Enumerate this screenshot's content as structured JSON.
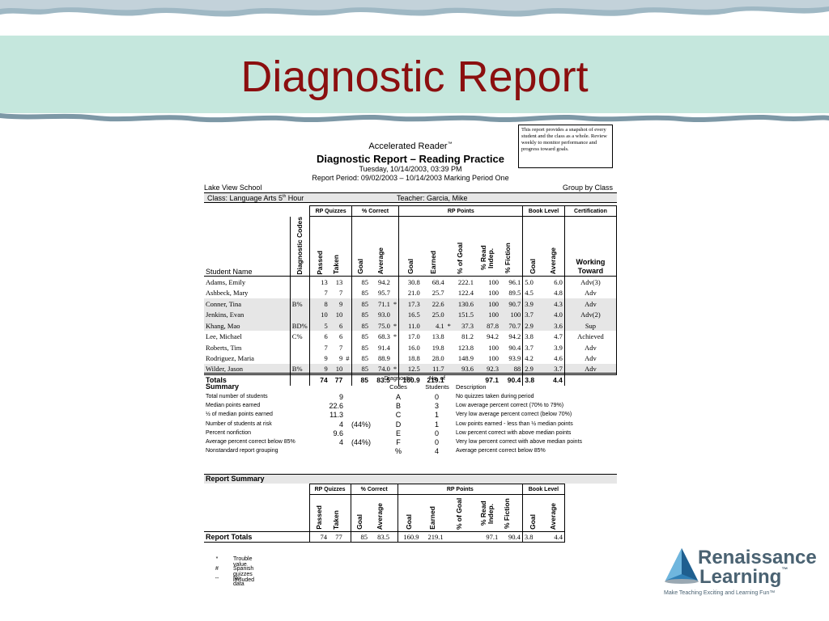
{
  "slide": {
    "title": "Diagnostic Report"
  },
  "note": "This report provides a snapshot of every student and the class as a whole.  Review weekly to monitor performance and progress toward goals.",
  "report": {
    "app": "Accelerated Reader",
    "tm": "™",
    "name": "Diagnostic Report – Reading Practice",
    "date": "Tuesday, 10/14/2003, 03:39 PM",
    "period": "Report Period: 09/02/2003 – 10/14/2003 Marking Period One",
    "school": "Lake View School",
    "group_by": "Group by Class",
    "class_label": "Class: Language Arts 5",
    "class_sup": "th",
    "class_suffix": " Hour",
    "teacher": "Teacher: Garcia, Mike"
  },
  "columns": {
    "groups": [
      "RP Quizzes",
      "% Correct",
      "RP Points",
      "Book Level",
      "Certification"
    ],
    "student_name": "Student Name",
    "diag": "Diagnostic Codes",
    "passed": "Passed",
    "taken": "Taken",
    "goal": "Goal",
    "average": "Average",
    "rp_goal": "Goal",
    "earned": "Earned",
    "pct_goal": "% of Goal",
    "read_indep": "% Read Indep.",
    "fiction": "% Fiction",
    "bl_goal": "Goal",
    "bl_avg": "Average",
    "working": "Working",
    "toward": "Toward"
  },
  "students": [
    {
      "name": "Adams, Emily",
      "diag": "",
      "passed": "13",
      "taken": "13",
      "flag": "",
      "goal": "85",
      "avg": "94.2",
      "tr": "",
      "rp_goal": "30.8",
      "earned": "68.4",
      "tr2": "",
      "pct_goal": "222.1",
      "read": "100",
      "fic": "96.1",
      "bl_goal": "5.0",
      "bl_avg": "6.0",
      "cert": "Adv(3)",
      "shade": false
    },
    {
      "name": "Ashbeck, Mary",
      "diag": "",
      "passed": "7",
      "taken": "7",
      "flag": "",
      "goal": "85",
      "avg": "95.7",
      "tr": "",
      "rp_goal": "21.0",
      "earned": "25.7",
      "tr2": "",
      "pct_goal": "122.4",
      "read": "100",
      "fic": "89.5",
      "bl_goal": "4.5",
      "bl_avg": "4.8",
      "cert": "Adv",
      "shade": false
    },
    {
      "name": "Conner, Tina",
      "diag": "B%",
      "passed": "8",
      "taken": "9",
      "flag": "",
      "goal": "85",
      "avg": "71.1",
      "tr": "*",
      "rp_goal": "17.3",
      "earned": "22.6",
      "tr2": "",
      "pct_goal": "130.6",
      "read": "100",
      "fic": "90.7",
      "bl_goal": "3.9",
      "bl_avg": "4.3",
      "cert": "Adv",
      "shade": true
    },
    {
      "name": "Jenkins, Evan",
      "diag": "",
      "passed": "10",
      "taken": "10",
      "flag": "",
      "goal": "85",
      "avg": "93.0",
      "tr": "",
      "rp_goal": "16.5",
      "earned": "25.0",
      "tr2": "",
      "pct_goal": "151.5",
      "read": "100",
      "fic": "100",
      "bl_goal": "3.7",
      "bl_avg": "4.0",
      "cert": "Adv(2)",
      "shade": true
    },
    {
      "name": "Khang, Mao",
      "diag": "BD%",
      "passed": "5",
      "taken": "6",
      "flag": "",
      "goal": "85",
      "avg": "75.0",
      "tr": "*",
      "rp_goal": "11.0",
      "earned": "4.1",
      "tr2": "*",
      "pct_goal": "37.3",
      "read": "87.8",
      "fic": "70.7",
      "bl_goal": "2.9",
      "bl_avg": "3.6",
      "cert": "Sup",
      "shade": true
    },
    {
      "name": "Lee, Michael",
      "diag": "C%",
      "passed": "6",
      "taken": "6",
      "flag": "",
      "goal": "85",
      "avg": "68.3",
      "tr": "*",
      "rp_goal": "17.0",
      "earned": "13.8",
      "tr2": "",
      "pct_goal": "81.2",
      "read": "94.2",
      "fic": "94.2",
      "bl_goal": "3.8",
      "bl_avg": "4.7",
      "cert": "Achieved",
      "shade": false
    },
    {
      "name": "Roberts, Tim",
      "diag": "",
      "passed": "7",
      "taken": "7",
      "flag": "",
      "goal": "85",
      "avg": "91.4",
      "tr": "",
      "rp_goal": "16.0",
      "earned": "19.8",
      "tr2": "",
      "pct_goal": "123.8",
      "read": "100",
      "fic": "90.4",
      "bl_goal": "3.7",
      "bl_avg": "3.9",
      "cert": "Adv",
      "shade": false
    },
    {
      "name": "Rodriguez, Maria",
      "diag": "",
      "passed": "9",
      "taken": "9",
      "flag": "#",
      "goal": "85",
      "avg": "88.9",
      "tr": "",
      "rp_goal": "18.8",
      "earned": "28.0",
      "tr2": "",
      "pct_goal": "148.9",
      "read": "100",
      "fic": "93.9",
      "bl_goal": "4.2",
      "bl_avg": "4.6",
      "cert": "Adv",
      "shade": false
    },
    {
      "name": "Wilder, Jason",
      "diag": "B%",
      "passed": "9",
      "taken": "10",
      "flag": "",
      "goal": "85",
      "avg": "74.0",
      "tr": "*",
      "rp_goal": "12.5",
      "earned": "11.7",
      "tr2": "",
      "pct_goal": "93.6",
      "read": "92.3",
      "fic": "88",
      "bl_goal": "2.9",
      "bl_avg": "3.7",
      "cert": "Adv",
      "shade": true
    }
  ],
  "totals": {
    "label": "Totals",
    "passed": "74",
    "taken": "77",
    "goal": "85",
    "avg": "83.5",
    "rp_goal": "160.9",
    "earned": "219.1",
    "read": "97.1",
    "fic": "90.4",
    "bl_goal": "3.8",
    "bl_avg": "4.4"
  },
  "summary": {
    "title": "Summary",
    "codes_h1": "Diagnostic",
    "codes_h2": "Codes",
    "students_h1": "No. of",
    "students_h2": "Students",
    "desc_h": "Description",
    "left": [
      {
        "label": "Total number of students",
        "v1": "9",
        "v2": ""
      },
      {
        "label": "Median points earned",
        "v1": "22.6",
        "v2": ""
      },
      {
        "label": "½ of median points earned",
        "v1": "11.3",
        "v2": ""
      },
      {
        "label": "Number of students at risk",
        "v1": "4",
        "v2": "(44%)"
      },
      {
        "label": "Percent nonfiction",
        "v1": "9.6",
        "v2": ""
      },
      {
        "label": "Average percent correct below 85%",
        "v1": "4",
        "v2": "(44%)"
      },
      {
        "label": "Nonstandard report grouping",
        "v1": "",
        "v2": ""
      }
    ],
    "codes": [
      {
        "code": "A",
        "n": "0",
        "desc": "No quizzes taken during period"
      },
      {
        "code": "B",
        "n": "3",
        "desc": "Low average percent correct (70% to 79%)"
      },
      {
        "code": "C",
        "n": "1",
        "desc": "Very low average percent correct (below 70%)"
      },
      {
        "code": "D",
        "n": "1",
        "desc": "Low points earned - less than ½ median points"
      },
      {
        "code": "E",
        "n": "0",
        "desc": "Low percent correct with above median points"
      },
      {
        "code": "F",
        "n": "0",
        "desc": "Very low percent correct with above median points"
      },
      {
        "code": "%",
        "n": "4",
        "desc": "Average percent correct below 85%"
      }
    ]
  },
  "report_summary": {
    "title": "Report Summary",
    "row_label": "Report Totals",
    "passed": "74",
    "taken": "77",
    "goal": "85",
    "avg": "83.5",
    "rp_goal": "160.9",
    "earned": "219.1",
    "read": "97.1",
    "fic": "90.4",
    "bl_goal": "3.8",
    "bl_avg": "4.4"
  },
  "legend": [
    {
      "sym": "*",
      "text": "Trouble value"
    },
    {
      "sym": "#",
      "text": "Spanish quizzes included"
    },
    {
      "sym": "--",
      "text": "No data"
    }
  ],
  "logo": {
    "line1": "Renaissance",
    "line2": "Learning",
    "tm": "™",
    "tagline": "Make Teaching Exciting and Learning Fun™"
  },
  "colors": {
    "banner": "#c5e7dd",
    "title": "#8b0f0f",
    "logo": "#4a6272",
    "shade": "#e6e6e6"
  }
}
